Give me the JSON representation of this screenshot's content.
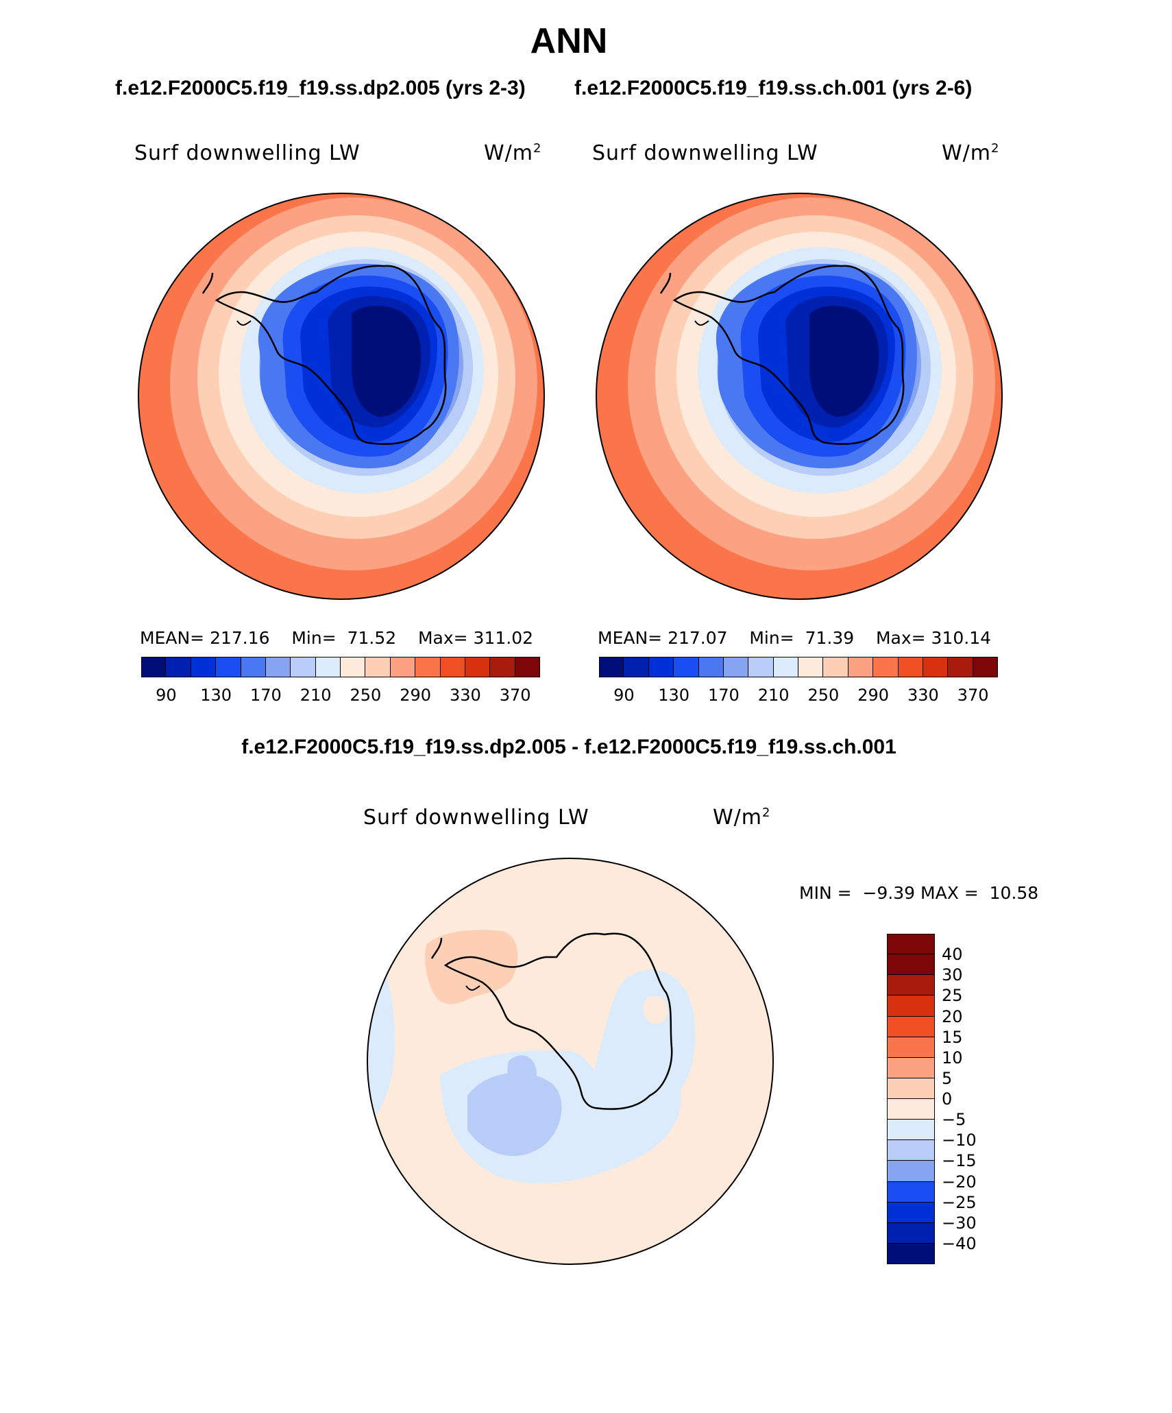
{
  "season": "ANN",
  "case_titles": {
    "left": "f.e12.F2000C5.f19_f19.ss.dp2.005 (yrs 2-3)",
    "right": "f.e12.F2000C5.f19_f19.ss.ch.001 (yrs 2-6)"
  },
  "difference_title": "f.e12.F2000C5.f19_f19.ss.dp2.005 - f.e12.F2000C5.f19_f19.ss.ch.001",
  "colors": {
    "colorbar_main": [
      "#000e7a",
      "#0020b0",
      "#0030d8",
      "#1a4df2",
      "#4a78f2",
      "#86a4f2",
      "#b7cdf7",
      "#dcebfb",
      "#feeadb",
      "#fdcfb5",
      "#fca283",
      "#fa7549",
      "#f04e23",
      "#d8310f",
      "#a91b0a",
      "#7d0707"
    ],
    "colorbar_diff": [
      "#000e7a",
      "#0020b0",
      "#0030d8",
      "#1a4df2",
      "#86a4f2",
      "#b7cdf7",
      "#dcebfb",
      "#feeadb",
      "#fdcfb5",
      "#fca283",
      "#fa7549",
      "#f04e23",
      "#d8310f",
      "#a91b0a",
      "#7d0707"
    ]
  },
  "panels": [
    {
      "variable": "Surf downwelling LW",
      "units": "W/m",
      "units_exp": "2",
      "mean_label": "MEAN=",
      "mean": "217.16",
      "min_label": "Min=",
      "min": "71.52",
      "max_label": "Max=",
      "max": "311.02",
      "ticks": [
        "90",
        "130",
        "170",
        "210",
        "250",
        "290",
        "330",
        "370"
      ]
    },
    {
      "variable": "Surf downwelling LW",
      "units": "W/m",
      "units_exp": "2",
      "mean_label": "MEAN=",
      "mean": "217.07",
      "min_label": "Min=",
      "min": "71.39",
      "max_label": "Max=",
      "max": "310.14",
      "ticks": [
        "90",
        "130",
        "170",
        "210",
        "250",
        "290",
        "330",
        "370"
      ]
    }
  ],
  "difference_panel": {
    "variable": "Surf downwelling LW",
    "units": "W/m",
    "units_exp": "2",
    "min_label": "MIN =",
    "min": "−9.39",
    "max_label": "MAX =",
    "max": "10.58",
    "ticks": [
      "40",
      "30",
      "25",
      "20",
      "15",
      "10",
      "5",
      "0",
      "−5",
      "−10",
      "−15",
      "−20",
      "−25",
      "−30",
      "−40"
    ]
  }
}
